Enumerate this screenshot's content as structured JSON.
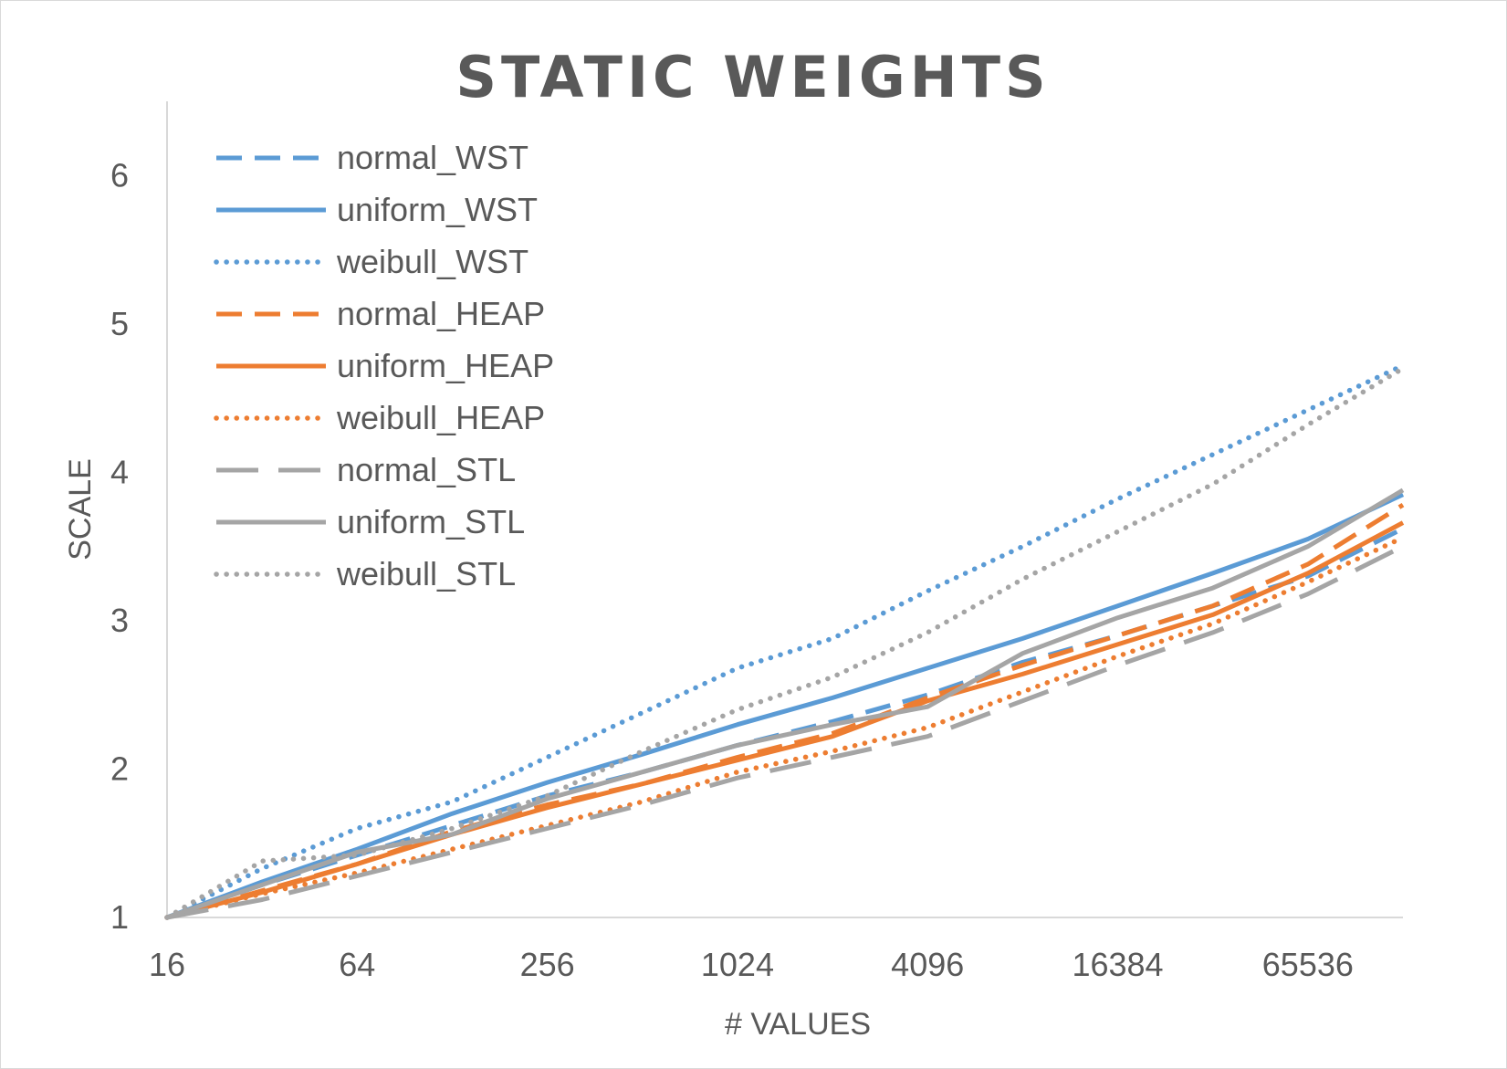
{
  "chart_data": {
    "type": "line",
    "title": "STATIC WEIGHTS",
    "xlabel": "# VALUES",
    "ylabel": "SCALE",
    "x_scale": "log2",
    "x_ticks": [
      "16",
      "64",
      "256",
      "1024",
      "4096",
      "16384",
      "65536"
    ],
    "y_ticks": [
      "1",
      "2",
      "3",
      "4",
      "5",
      "6"
    ],
    "xlim": [
      16,
      131072
    ],
    "ylim": [
      1,
      6.5
    ],
    "grid": false,
    "legend_position": "top-left",
    "x": [
      16,
      32,
      64,
      128,
      256,
      512,
      1024,
      2048,
      4096,
      8192,
      16384,
      32768,
      65536,
      131072
    ],
    "series": [
      {
        "name": "normal_WST",
        "color": "#5B9BD5",
        "dash": "dashed",
        "values": [
          1.0,
          1.22,
          1.42,
          1.62,
          1.82,
          1.98,
          2.16,
          2.32,
          2.5,
          2.72,
          2.9,
          3.1,
          3.3,
          3.62
        ]
      },
      {
        "name": "uniform_WST",
        "color": "#5B9BD5",
        "dash": "solid",
        "values": [
          1.0,
          1.24,
          1.46,
          1.7,
          1.91,
          2.1,
          2.3,
          2.48,
          2.68,
          2.88,
          3.1,
          3.32,
          3.55,
          3.85
        ]
      },
      {
        "name": "weibull_WST",
        "color": "#5B9BD5",
        "dash": "dotted",
        "values": [
          1.0,
          1.33,
          1.6,
          1.78,
          2.08,
          2.38,
          2.68,
          2.88,
          3.2,
          3.5,
          3.82,
          4.12,
          4.42,
          4.72
        ]
      },
      {
        "name": "normal_HEAP",
        "color": "#ED7D31",
        "dash": "dashed",
        "values": [
          1.0,
          1.18,
          1.36,
          1.58,
          1.76,
          1.9,
          2.08,
          2.24,
          2.48,
          2.7,
          2.9,
          3.1,
          3.38,
          3.78
        ]
      },
      {
        "name": "uniform_HEAP",
        "color": "#ED7D31",
        "dash": "solid",
        "values": [
          1.0,
          1.17,
          1.36,
          1.56,
          1.74,
          1.9,
          2.06,
          2.22,
          2.46,
          2.64,
          2.84,
          3.04,
          3.32,
          3.66
        ]
      },
      {
        "name": "weibull_HEAP",
        "color": "#ED7D31",
        "dash": "dotted",
        "values": [
          1.0,
          1.16,
          1.3,
          1.46,
          1.62,
          1.78,
          1.98,
          2.12,
          2.28,
          2.52,
          2.76,
          2.98,
          3.26,
          3.56
        ]
      },
      {
        "name": "normal_STL",
        "color": "#A5A5A5",
        "dash": "longdash",
        "values": [
          1.0,
          1.12,
          1.28,
          1.44,
          1.6,
          1.76,
          1.94,
          2.08,
          2.22,
          2.46,
          2.7,
          2.92,
          3.18,
          3.5
        ]
      },
      {
        "name": "uniform_STL",
        "color": "#A5A5A5",
        "dash": "solid",
        "values": [
          1.0,
          1.22,
          1.44,
          1.56,
          1.8,
          1.98,
          2.16,
          2.3,
          2.42,
          2.78,
          3.02,
          3.22,
          3.5,
          3.88
        ]
      },
      {
        "name": "weibull_STL",
        "color": "#A5A5A5",
        "dash": "dotted",
        "values": [
          1.0,
          1.38,
          1.42,
          1.6,
          1.82,
          2.12,
          2.4,
          2.62,
          2.92,
          3.28,
          3.6,
          3.92,
          4.32,
          4.7
        ]
      }
    ]
  }
}
